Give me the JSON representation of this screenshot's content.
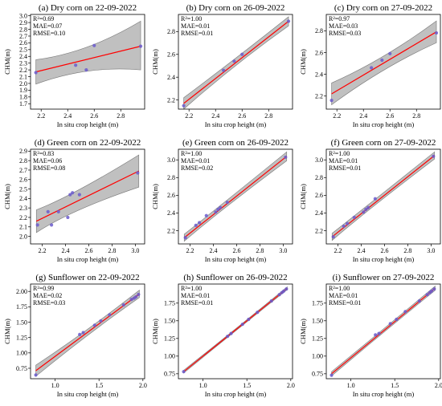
{
  "figure": {
    "xlabel": "In situ crop height (m)",
    "ylabel": "CHM(m)"
  },
  "chart_data": [
    {
      "type": "scatter",
      "title": "(a) Dry corn on 22-09-2022",
      "stats": [
        "R²=0.69",
        "MAE=0.07",
        "RMSE=0.10"
      ],
      "xlim": [
        2.12,
        2.98
      ],
      "ylim": [
        1.62,
        3.02
      ],
      "xticks": [
        2.2,
        2.4,
        2.6,
        2.8
      ],
      "yticks": [
        1.7,
        1.8,
        1.9,
        2.0,
        2.1,
        2.2,
        2.3,
        2.4,
        2.5,
        2.6,
        2.7,
        2.8,
        2.9,
        3.0
      ],
      "points": [
        [
          2.16,
          2.16
        ],
        [
          2.46,
          2.27
        ],
        [
          2.54,
          2.2
        ],
        [
          2.6,
          2.56
        ],
        [
          2.95,
          2.55
        ]
      ],
      "fit": [
        [
          2.16,
          2.17
        ],
        [
          2.95,
          2.55
        ]
      ],
      "band": [
        [
          2.16,
          1.99,
          2.35
        ],
        [
          2.55,
          2.27,
          2.45
        ],
        [
          2.95,
          2.2,
          2.92
        ]
      ]
    },
    {
      "type": "scatter",
      "title": "(b) Dry corn on 26-09-2022",
      "stats": [
        "R²=1.00",
        "MAE=0.01",
        "RMSE=0.01"
      ],
      "xlim": [
        2.12,
        2.98
      ],
      "ylim": [
        2.12,
        2.95
      ],
      "xticks": [
        2.2,
        2.4,
        2.6,
        2.8
      ],
      "yticks": [
        2.2,
        2.4,
        2.6,
        2.8
      ],
      "points": [
        [
          2.16,
          2.15
        ],
        [
          2.46,
          2.46
        ],
        [
          2.54,
          2.54
        ],
        [
          2.6,
          2.6
        ],
        [
          2.95,
          2.89
        ]
      ],
      "fit": [
        [
          2.16,
          2.17
        ],
        [
          2.95,
          2.89
        ]
      ],
      "band": [
        [
          2.16,
          2.12,
          2.22
        ],
        [
          2.55,
          2.52,
          2.56
        ],
        [
          2.95,
          2.85,
          2.93
        ]
      ]
    },
    {
      "type": "scatter",
      "title": "(c) Dry corn on 27-09-2022",
      "stats": [
        "R²=0.97",
        "MAE=0.03",
        "RMSE=0.03"
      ],
      "xlim": [
        2.12,
        2.98
      ],
      "ylim": [
        2.08,
        2.95
      ],
      "xticks": [
        2.2,
        2.4,
        2.6,
        2.8
      ],
      "yticks": [
        2.2,
        2.4,
        2.6,
        2.8
      ],
      "points": [
        [
          2.16,
          2.16
        ],
        [
          2.46,
          2.46
        ],
        [
          2.54,
          2.53
        ],
        [
          2.6,
          2.59
        ],
        [
          2.95,
          2.78
        ]
      ],
      "fit": [
        [
          2.16,
          2.22
        ],
        [
          2.95,
          2.79
        ]
      ],
      "band": [
        [
          2.16,
          2.12,
          2.32
        ],
        [
          2.55,
          2.47,
          2.53
        ],
        [
          2.95,
          2.69,
          2.89
        ]
      ]
    },
    {
      "type": "scatter",
      "title": "(d) Green corn on 22-09-2022",
      "stats": [
        "R²=0.83",
        "MAE=0.06",
        "RMSE=0.08"
      ],
      "xlim": [
        2.1,
        3.08
      ],
      "ylim": [
        1.92,
        2.92
      ],
      "xticks": [
        2.2,
        2.4,
        2.6,
        2.8,
        3.0
      ],
      "yticks": [
        2.0,
        2.1,
        2.2,
        2.3,
        2.4,
        2.5,
        2.6,
        2.7,
        2.8,
        2.9
      ],
      "points": [
        [
          2.16,
          2.12
        ],
        [
          2.25,
          2.26
        ],
        [
          2.28,
          2.12
        ],
        [
          2.34,
          2.26
        ],
        [
          2.42,
          2.2
        ],
        [
          2.44,
          2.44
        ],
        [
          2.46,
          2.46
        ],
        [
          2.52,
          2.44
        ],
        [
          3.02,
          2.67
        ]
      ],
      "fit": [
        [
          2.15,
          2.16
        ],
        [
          3.03,
          2.69
        ]
      ],
      "band": [
        [
          2.15,
          2.04,
          2.28
        ],
        [
          2.45,
          2.28,
          2.42
        ],
        [
          3.03,
          2.52,
          2.86
        ]
      ]
    },
    {
      "type": "scatter",
      "title": "(e) Green corn on 26-09-2022",
      "stats": [
        "R²=1.00",
        "MAE=0.01",
        "RMSE=0.02"
      ],
      "xlim": [
        2.1,
        3.08
      ],
      "ylim": [
        2.05,
        3.12
      ],
      "xticks": [
        2.2,
        2.4,
        2.6,
        2.8,
        3.0
      ],
      "yticks": [
        2.2,
        2.4,
        2.6,
        2.8,
        3.0
      ],
      "points": [
        [
          2.16,
          2.12
        ],
        [
          2.25,
          2.26
        ],
        [
          2.28,
          2.29
        ],
        [
          2.34,
          2.37
        ],
        [
          2.42,
          2.41
        ],
        [
          2.44,
          2.44
        ],
        [
          2.46,
          2.46
        ],
        [
          2.52,
          2.52
        ],
        [
          3.02,
          3.03
        ]
      ],
      "fit": [
        [
          2.15,
          2.12
        ],
        [
          3.03,
          3.04
        ]
      ],
      "band": [
        [
          2.15,
          2.08,
          2.16
        ],
        [
          2.45,
          2.42,
          2.47
        ],
        [
          3.03,
          2.99,
          3.09
        ]
      ]
    },
    {
      "type": "scatter",
      "title": "(f) Green corn on 27-09-2022",
      "stats": [
        "R²=1.00",
        "MAE=0.01",
        "RMSE=0.01"
      ],
      "xlim": [
        2.1,
        3.08
      ],
      "ylim": [
        2.05,
        3.12
      ],
      "xticks": [
        2.2,
        2.4,
        2.6,
        2.8,
        3.0
      ],
      "yticks": [
        2.2,
        2.4,
        2.6,
        2.8,
        3.0
      ],
      "points": [
        [
          2.16,
          2.13
        ],
        [
          2.25,
          2.25
        ],
        [
          2.28,
          2.28
        ],
        [
          2.34,
          2.35
        ],
        [
          2.42,
          2.41
        ],
        [
          2.44,
          2.44
        ],
        [
          2.46,
          2.46
        ],
        [
          2.52,
          2.56
        ],
        [
          3.02,
          3.04
        ]
      ],
      "fit": [
        [
          2.15,
          2.13
        ],
        [
          3.03,
          3.05
        ]
      ],
      "band": [
        [
          2.15,
          2.09,
          2.17
        ],
        [
          2.45,
          2.43,
          2.48
        ],
        [
          3.03,
          3.01,
          3.09
        ]
      ]
    },
    {
      "type": "scatter",
      "title": "(g) Sunflower on 22-09-2022",
      "stats": [
        "R²=0.99",
        "MAE=0.02",
        "RMSE=0.03"
      ],
      "xlim": [
        0.72,
        2.02
      ],
      "ylim": [
        0.58,
        2.12
      ],
      "xticks": [
        1.0,
        1.5,
        2.0
      ],
      "yticks": [
        0.75,
        1.0,
        1.25,
        1.5,
        1.75,
        2.0
      ],
      "ytick_labels": [
        "0.75",
        "1.00",
        "1.25",
        "1.50",
        "1.75",
        "2.00"
      ],
      "points": [
        [
          0.78,
          0.64
        ],
        [
          1.28,
          1.3
        ],
        [
          1.32,
          1.33
        ],
        [
          1.45,
          1.45
        ],
        [
          1.52,
          1.52
        ],
        [
          1.62,
          1.62
        ],
        [
          1.78,
          1.78
        ],
        [
          1.87,
          1.87
        ],
        [
          1.9,
          1.89
        ],
        [
          1.92,
          1.91
        ],
        [
          1.95,
          1.95
        ]
      ],
      "fit": [
        [
          0.78,
          0.71
        ],
        [
          1.96,
          1.96
        ]
      ],
      "band": [
        [
          0.78,
          0.62,
          0.8
        ],
        [
          1.37,
          1.31,
          1.36
        ],
        [
          1.96,
          1.9,
          2.02
        ]
      ]
    },
    {
      "type": "scatter",
      "title": "(h) Sunflower on 26-09-2022",
      "stats": [
        "R²=1.00",
        "MAE=0.01",
        "RMSE=0.01"
      ],
      "xlim": [
        0.72,
        2.02
      ],
      "ylim": [
        0.68,
        2.02
      ],
      "xticks": [
        1.0,
        1.5,
        2.0
      ],
      "yticks": [
        0.75,
        1.0,
        1.25,
        1.5,
        1.75
      ],
      "ytick_labels": [
        "0.75",
        "1.00",
        "1.25",
        "1.50",
        "1.75"
      ],
      "points": [
        [
          0.78,
          0.78
        ],
        [
          1.28,
          1.28
        ],
        [
          1.32,
          1.32
        ],
        [
          1.45,
          1.45
        ],
        [
          1.52,
          1.52
        ],
        [
          1.62,
          1.62
        ],
        [
          1.78,
          1.78
        ],
        [
          1.87,
          1.87
        ],
        [
          1.9,
          1.9
        ],
        [
          1.92,
          1.92
        ],
        [
          1.95,
          1.95
        ]
      ],
      "fit": [
        [
          0.78,
          0.78
        ],
        [
          1.96,
          1.96
        ]
      ],
      "band": [
        [
          0.78,
          0.76,
          0.8
        ],
        [
          1.37,
          1.36,
          1.38
        ],
        [
          1.96,
          1.94,
          1.98
        ]
      ]
    },
    {
      "type": "scatter",
      "title": "(i) Sunflower on 27-09-2022",
      "stats": [
        "R²=1.00",
        "MAE=0.01",
        "RMSE=0.01"
      ],
      "xlim": [
        0.72,
        2.02
      ],
      "ylim": [
        0.68,
        2.02
      ],
      "xticks": [
        1.0,
        1.5,
        2.0
      ],
      "yticks": [
        0.75,
        1.0,
        1.25,
        1.5,
        1.75
      ],
      "ytick_labels": [
        "0.75",
        "1.00",
        "1.25",
        "1.50",
        "1.75"
      ],
      "points": [
        [
          0.78,
          0.73
        ],
        [
          1.28,
          1.3
        ],
        [
          1.32,
          1.32
        ],
        [
          1.45,
          1.46
        ],
        [
          1.52,
          1.52
        ],
        [
          1.62,
          1.63
        ],
        [
          1.78,
          1.78
        ],
        [
          1.87,
          1.87
        ],
        [
          1.9,
          1.9
        ],
        [
          1.92,
          1.92
        ],
        [
          1.95,
          1.95
        ]
      ],
      "fit": [
        [
          0.78,
          0.75
        ],
        [
          1.96,
          1.96
        ]
      ],
      "band": [
        [
          0.78,
          0.72,
          0.78
        ],
        [
          1.37,
          1.34,
          1.38
        ],
        [
          1.96,
          1.93,
          1.99
        ]
      ]
    }
  ],
  "colors": {
    "point": "#6a5acd",
    "fit": "#ff0000",
    "band": "#c0c0c0",
    "band_edge": "#777777"
  }
}
